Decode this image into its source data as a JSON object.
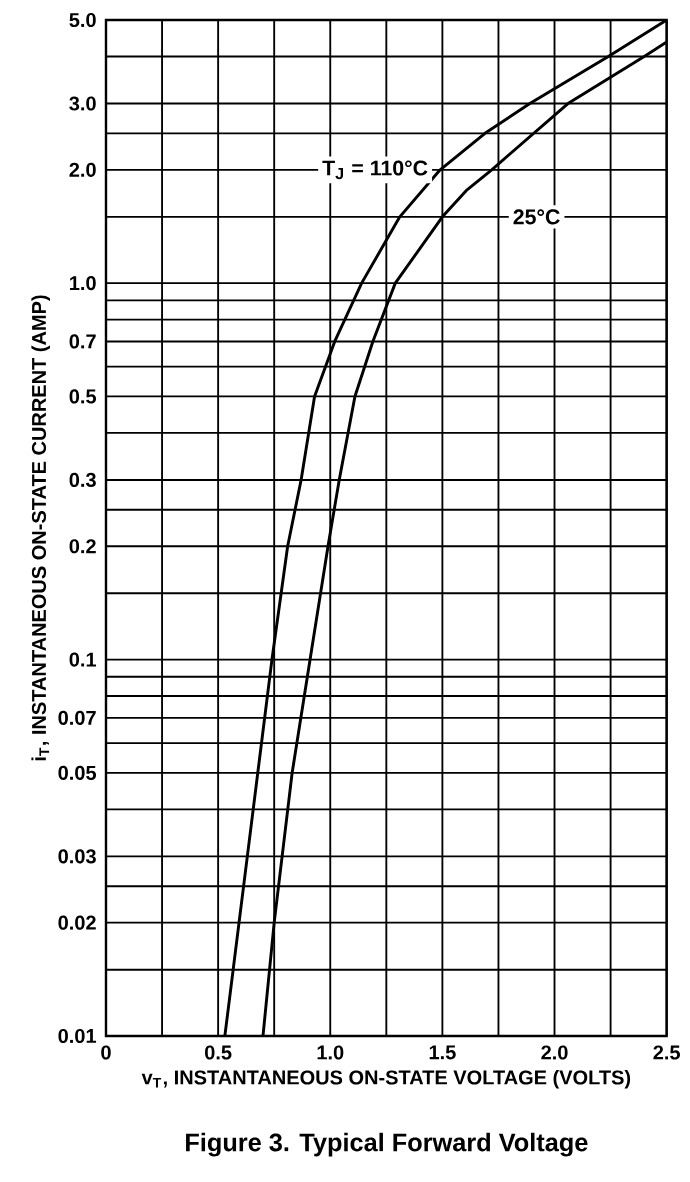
{
  "chart_data": {
    "type": "line",
    "title": "Figure 3. Typical Forward Voltage",
    "xlabel": "v$_{T}$, INSTANTANEOUS ON-STATE VOLTAGE (VOLTS)",
    "ylabel": "i$_{T}$, INSTANTANEOUS ON-STATE CURRENT (AMP)",
    "log": "y",
    "grid": true,
    "marker": "none",
    "line_style": "solid",
    "xlim": [
      0,
      2.5
    ],
    "ylim": [
      0.01,
      5
    ],
    "xticks": [
      0,
      {
        "value": 0.25,
        "label": null
      },
      0.5,
      {
        "value": 0.75,
        "label": null
      },
      {
        "value": 1,
        "label": "1.0"
      },
      {
        "value": 1.25,
        "label": null
      },
      1.5,
      {
        "value": 1.75,
        "label": null
      },
      {
        "value": 2,
        "label": "2.0"
      },
      {
        "value": 2.25,
        "label": null
      },
      2.5
    ],
    "yticks": [
      0.01,
      {
        "value": 0.015,
        "label": null
      },
      0.02,
      {
        "value": 0.025,
        "label": null
      },
      0.03,
      {
        "value": 0.04,
        "label": null
      },
      0.05,
      {
        "value": 0.06,
        "label": null
      },
      0.07,
      {
        "value": 0.08,
        "label": null
      },
      {
        "value": 0.09,
        "label": null
      },
      0.1,
      {
        "value": 0.15,
        "label": null
      },
      0.2,
      {
        "value": 0.25,
        "label": null
      },
      0.3,
      {
        "value": 0.4,
        "label": null
      },
      0.5,
      {
        "value": 0.6,
        "label": null
      },
      0.7,
      {
        "value": 0.8,
        "label": null
      },
      {
        "value": 0.9,
        "label": null
      },
      {
        "value": 1,
        "label": "1.0"
      },
      {
        "value": 1.5,
        "label": null
      },
      {
        "value": 2,
        "label": "2.0"
      },
      {
        "value": 2.5,
        "label": null
      },
      {
        "value": 3,
        "label": "3.0"
      },
      {
        "value": 4,
        "label": null
      },
      {
        "value": 5,
        "label": "5.0"
      }
    ],
    "series": [
      {
        "color": "#000000",
        "x": [
          0.53,
          0.74,
          0.81,
          0.87,
          0.93,
          1.02,
          1.14,
          1.31,
          1.49,
          1.69,
          1.89,
          2.24,
          2.5
        ],
        "values": [
          0.01,
          0.1,
          0.2,
          0.3,
          0.5,
          0.7,
          1.0,
          1.5,
          2.0,
          2.5,
          3.0,
          4.0,
          5.0
        ]
      },
      {
        "color": "#000000",
        "x": [
          0.7,
          0.75,
          0.83,
          0.91,
          0.99,
          1.04,
          1.11,
          1.19,
          1.29,
          1.5,
          1.61,
          1.72,
          2.06,
          2.4,
          2.5
        ],
        "values": [
          0.01,
          0.02,
          0.05,
          0.1,
          0.2,
          0.3,
          0.5,
          0.7,
          1.0,
          1.5,
          1.77,
          2.0,
          3.0,
          4.0,
          4.37
        ]
      }
    ],
    "annotations": [
      "T$_{J}$ = 110°C",
      "25°C"
    ]
  }
}
